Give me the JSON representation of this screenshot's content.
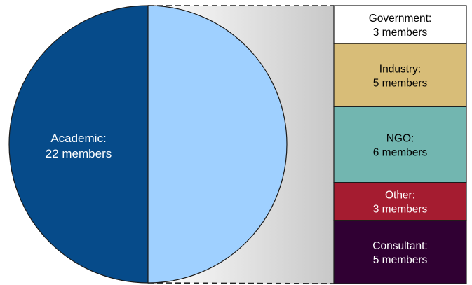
{
  "chart_data": {
    "type": "pie",
    "title": "",
    "pie": {
      "slices": [
        {
          "label": "Academic:",
          "sublabel": "22 members",
          "value": 22,
          "color": "#064b8a",
          "text_color": "#ffffff"
        },
        {
          "label": "",
          "sublabel": "",
          "value": 22,
          "color": "#9fd0ff",
          "text_color": "#000000"
        }
      ]
    },
    "stack": {
      "segments": [
        {
          "label": "Government:",
          "sublabel": "3 members",
          "value": 3,
          "color": "#ffffff",
          "text_color": "#000000"
        },
        {
          "label": "Industry:",
          "sublabel": "5 members",
          "value": 5,
          "color": "#d8bd78",
          "text_color": "#000000"
        },
        {
          "label": "NGO:",
          "sublabel": "6 members",
          "value": 6,
          "color": "#72b6b0",
          "text_color": "#000000"
        },
        {
          "label": "Other:",
          "sublabel": "3 members",
          "value": 3,
          "color": "#a51c30",
          "text_color": "#ffffff"
        },
        {
          "label": "Consultant:",
          "sublabel": "5 members",
          "value": 5,
          "color": "#300033",
          "text_color": "#ffffff"
        }
      ]
    }
  }
}
